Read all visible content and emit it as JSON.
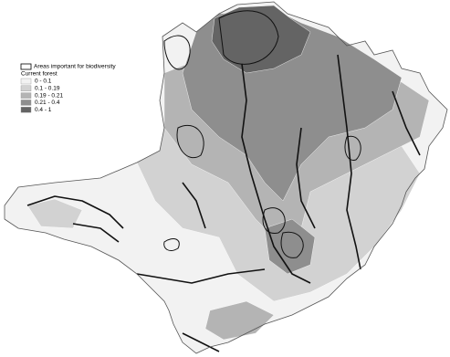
{
  "legend": {
    "areas_label": "Areas important for biodiversity",
    "title": "Current forest",
    "classes": [
      {
        "label": "0 - 0.1",
        "color": "#f2f2f2"
      },
      {
        "label": "0.1 - 0.19",
        "color": "#d2d2d2"
      },
      {
        "label": "0.19 - 0.21",
        "color": "#b4b4b4"
      },
      {
        "label": "0.21 - 0.4",
        "color": "#8e8e8e"
      },
      {
        "label": "0.4 - 1",
        "color": "#646464"
      }
    ]
  }
}
